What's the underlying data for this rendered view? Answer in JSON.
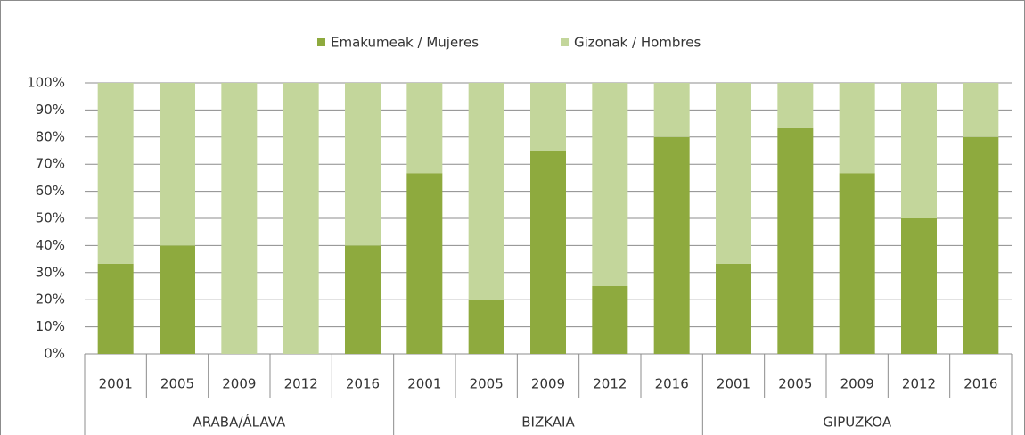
{
  "chart_data": {
    "type": "stacked_bar",
    "groups": [
      {
        "name": "ARABA/ÁLAVA",
        "categories": [
          "2001",
          "2005",
          "2009",
          "2012",
          "2016"
        ]
      },
      {
        "name": "BIZKAIA",
        "categories": [
          "2001",
          "2005",
          "2009",
          "2012",
          "2016"
        ]
      },
      {
        "name": "GIPUZKOA",
        "categories": [
          "2001",
          "2005",
          "2009",
          "2012",
          "2016"
        ]
      }
    ],
    "series": [
      {
        "name": "Emakumeak / Mujeres",
        "color": "#8eaa3e",
        "values": [
          33.3,
          40,
          0,
          0,
          40,
          66.7,
          20,
          75,
          25,
          80,
          33.3,
          83.3,
          66.7,
          50,
          80
        ]
      },
      {
        "name": "Gizonak / Hombres",
        "color": "#c3d69b",
        "values": [
          66.7,
          60,
          100,
          100,
          60,
          33.3,
          80,
          25,
          75,
          20,
          66.7,
          16.7,
          33.3,
          50,
          20
        ]
      }
    ],
    "ylim": [
      0,
      100
    ],
    "yticks": [
      {
        "value": 0,
        "label": "0%"
      },
      {
        "value": 10,
        "label": "10%"
      },
      {
        "value": 20,
        "label": "20%"
      },
      {
        "value": 30,
        "label": "30%"
      },
      {
        "value": 40,
        "label": "40%"
      },
      {
        "value": 50,
        "label": "50%"
      },
      {
        "value": 60,
        "label": "60%"
      },
      {
        "value": 70,
        "label": "70%"
      },
      {
        "value": 80,
        "label": "80%"
      },
      {
        "value": 90,
        "label": "90%"
      },
      {
        "value": 100,
        "label": "100%"
      }
    ],
    "grid": true,
    "legend": "top"
  }
}
